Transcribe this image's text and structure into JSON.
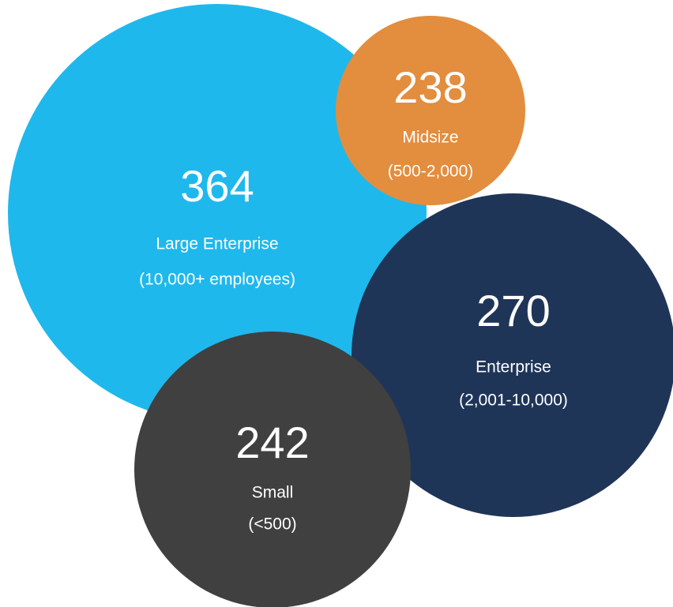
{
  "chart_data": {
    "type": "bubble",
    "categories": [
      "Large Enterprise",
      "Enterprise",
      "Midsize",
      "Small"
    ],
    "sublabels": [
      "(10,000+ employees)",
      "(2,001-10,000)",
      "(500-2,000)",
      "(<500)"
    ],
    "values": [
      364,
      270,
      238,
      242
    ],
    "colors": [
      "#1fb8ec",
      "#1f3558",
      "#e38d3e",
      "#404040"
    ]
  }
}
